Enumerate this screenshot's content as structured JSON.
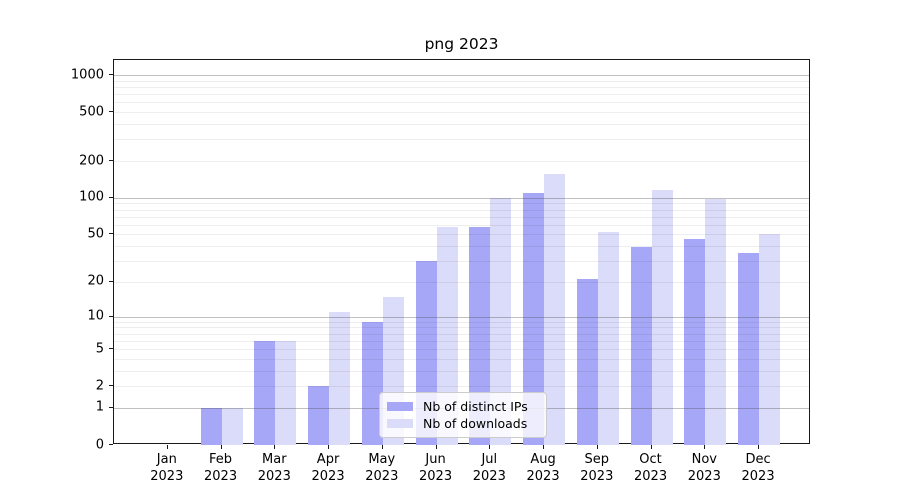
{
  "chart_data": {
    "type": "bar",
    "title": "png 2023",
    "categories": [
      "Jan",
      "Feb",
      "Mar",
      "Apr",
      "May",
      "Jun",
      "Jul",
      "Aug",
      "Sep",
      "Oct",
      "Nov",
      "Dec"
    ],
    "year": "2023",
    "series": [
      {
        "name": "Nb of distinct IPs",
        "color": "#a7a7f7",
        "values": [
          0,
          1,
          6,
          2,
          9,
          30,
          58,
          110,
          21,
          39,
          46,
          35
        ]
      },
      {
        "name": "Nb of downloads",
        "color": "#dbdbfa",
        "values": [
          0,
          1,
          6,
          11,
          15,
          58,
          100,
          158,
          52,
          115,
          98,
          50
        ]
      }
    ],
    "xlabel": "",
    "ylabel": "",
    "yscale": "log1p",
    "ylim": [
      0,
      1300
    ],
    "yticks": [
      0,
      1,
      2,
      5,
      10,
      20,
      50,
      100,
      200,
      500,
      1000
    ],
    "major_gridlines": [
      1,
      10,
      100,
      1000
    ],
    "minor_gridlines": [
      2,
      3,
      4,
      5,
      6,
      7,
      8,
      9,
      20,
      30,
      40,
      50,
      60,
      70,
      80,
      90,
      200,
      300,
      400,
      500,
      600,
      700,
      800,
      900
    ],
    "grid": true,
    "legend_position": "lower center"
  }
}
